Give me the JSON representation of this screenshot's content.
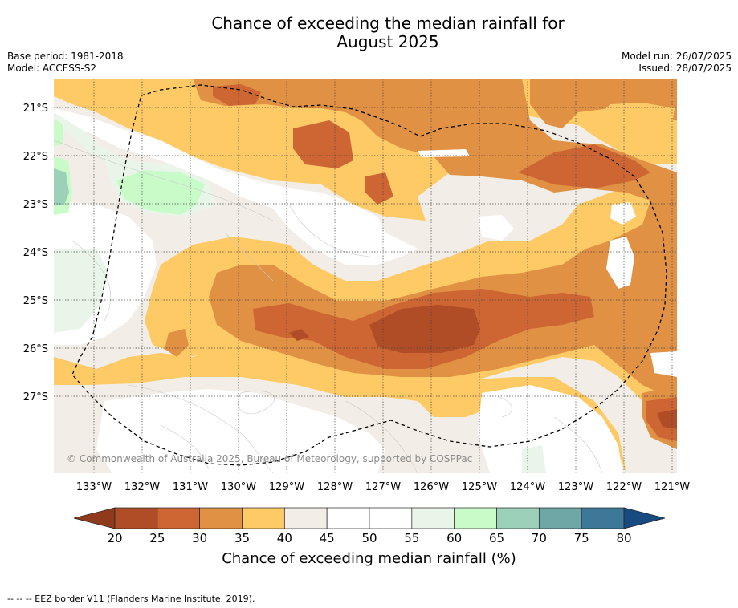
{
  "header": {
    "title_line1": "Chance of exceeding the median rainfall for",
    "title_line2": "August 2025",
    "base_period": "Base period: 1981-2018",
    "model": "Model: ACCESS-S2",
    "model_run": "Model run: 26/07/2025",
    "issued": "Issued: 28/07/2025"
  },
  "map": {
    "lat_labels": [
      "21°S",
      "22°S",
      "23°S",
      "24°S",
      "25°S",
      "26°S",
      "27°S"
    ],
    "lon_labels": [
      "133°W",
      "132°W",
      "131°W",
      "130°W",
      "129°W",
      "128°W",
      "127°W",
      "126°W",
      "125°W",
      "124°W",
      "123°W",
      "122°W",
      "121°W"
    ],
    "attribution": "© Commonwealth of Australia 2025, Bureau of Meteorology, supported by COSPPac",
    "border_style": "dashed"
  },
  "colorbar": {
    "label": "Chance of exceeding median rainfall (%)",
    "ticks": [
      "20",
      "25",
      "30",
      "35",
      "40",
      "45",
      "50",
      "55",
      "60",
      "65",
      "70",
      "75",
      "80"
    ],
    "colors": [
      "#8e3a1b",
      "#b04d26",
      "#cd6633",
      "#e09144",
      "#fdca66",
      "#f2eee7",
      "#ffffff",
      "#ffffff",
      "#eaf5e9",
      "#c8fbc8",
      "#9dd0b8",
      "#6fa6a6",
      "#3e7899",
      "#174a80"
    ]
  },
  "footnote": "--  --  -- EEZ border V11 (Flanders Marine Institute, 2019)."
}
